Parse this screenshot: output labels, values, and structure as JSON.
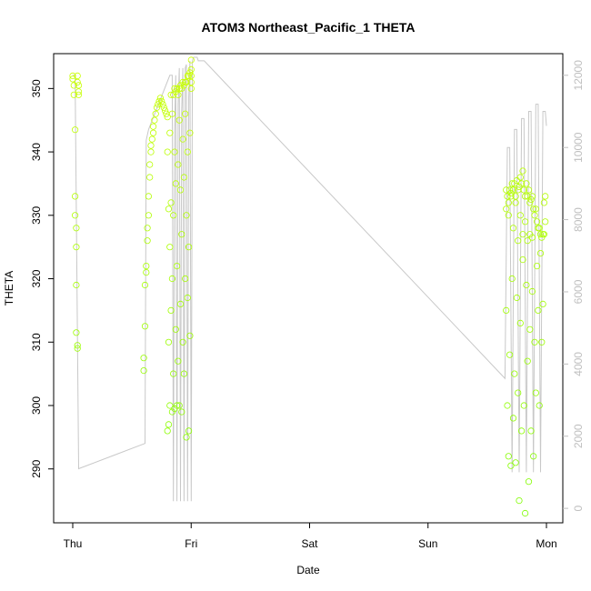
{
  "chart_data": {
    "type": "scatter",
    "title": "ATOM3 Northeast_Pacific_1 THETA",
    "xlabel": "Date",
    "ylabel": "THETA",
    "x_ticks": [
      "Thu",
      "Fri",
      "Sat",
      "Sun",
      "Mon"
    ],
    "x_range_days": [
      -0.1,
      4.1
    ],
    "y_ticks": [
      290,
      300,
      310,
      320,
      330,
      340,
      350
    ],
    "ylim": [
      281.5,
      355.5
    ],
    "y2_ticks": [
      0,
      2000,
      4000,
      6000,
      8000,
      10000,
      12000
    ],
    "y2lim": [
      -400,
      12600
    ],
    "grid": false,
    "legend": "none",
    "colors": {
      "line": "#c8c8c8",
      "right_axis": "#bfbfbf",
      "point_low_theta": "#7cfc00",
      "point_high_theta": "#ccff00"
    },
    "secondary_series_days": [
      0.0,
      0.02,
      0.05,
      0.61,
      0.62,
      0.64,
      0.82,
      0.84,
      0.85,
      0.86,
      0.87,
      0.88,
      0.89,
      0.9,
      0.91,
      0.92,
      0.93,
      0.94,
      0.95,
      0.96,
      0.97,
      0.98,
      0.99,
      1.0,
      1.01,
      1.02,
      1.03,
      1.04,
      1.05,
      1.06,
      1.07,
      1.08,
      1.09,
      1.1,
      1.11,
      3.65,
      3.67,
      3.69,
      3.71,
      3.73,
      3.75,
      3.77,
      3.79,
      3.81,
      3.83,
      3.85,
      3.87,
      3.89,
      3.91,
      3.93,
      3.95,
      3.97,
      3.99,
      4.0
    ],
    "secondary_series_values": [
      12000,
      12000,
      1100,
      1800,
      10200,
      10500,
      12000,
      12000,
      200,
      10500,
      12000,
      200,
      11200,
      12200,
      200,
      11000,
      12200,
      200,
      12200,
      12300,
      200,
      11400,
      12400,
      200,
      12400,
      12500,
      12500,
      12500,
      12500,
      12400,
      12400,
      12400,
      12400,
      12400,
      12400,
      3600,
      10000,
      10000,
      1000,
      10500,
      10500,
      1000,
      10800,
      10800,
      1000,
      11000,
      11000,
      1000,
      11200,
      11200,
      1000,
      11000,
      11000,
      10600
    ],
    "theta_series_days": [
      0.0,
      0.0,
      0.01,
      0.01,
      0.02,
      0.02,
      0.02,
      0.03,
      0.03,
      0.03,
      0.03,
      0.04,
      0.04,
      0.04,
      0.04,
      0.05,
      0.05,
      0.05,
      0.6,
      0.6,
      0.61,
      0.61,
      0.62,
      0.62,
      0.63,
      0.63,
      0.64,
      0.64,
      0.65,
      0.65,
      0.66,
      0.66,
      0.67,
      0.68,
      0.68,
      0.69,
      0.7,
      0.71,
      0.72,
      0.73,
      0.74,
      0.75,
      0.76,
      0.77,
      0.78,
      0.79,
      0.8,
      0.8,
      0.8,
      0.81,
      0.81,
      0.81,
      0.82,
      0.82,
      0.82,
      0.83,
      0.83,
      0.83,
      0.84,
      0.84,
      0.84,
      0.85,
      0.85,
      0.85,
      0.86,
      0.86,
      0.86,
      0.87,
      0.87,
      0.87,
      0.88,
      0.88,
      0.88,
      0.89,
      0.89,
      0.89,
      0.9,
      0.9,
      0.9,
      0.91,
      0.91,
      0.91,
      0.92,
      0.92,
      0.92,
      0.93,
      0.93,
      0.93,
      0.94,
      0.94,
      0.94,
      0.95,
      0.95,
      0.95,
      0.96,
      0.96,
      0.96,
      0.97,
      0.97,
      0.97,
      0.98,
      0.98,
      0.98,
      0.99,
      0.99,
      0.99,
      1.0,
      1.0,
      1.0,
      1.0,
      1.0,
      3.66,
      3.66,
      3.67,
      3.67,
      3.68,
      3.68,
      3.69,
      3.69,
      3.7,
      3.7,
      3.71,
      3.71,
      3.72,
      3.72,
      3.73,
      3.73,
      3.74,
      3.74,
      3.75,
      3.75,
      3.76,
      3.76,
      3.77,
      3.77,
      3.78,
      3.78,
      3.79,
      3.79,
      3.8,
      3.8,
      3.81,
      3.81,
      3.82,
      3.82,
      3.83,
      3.83,
      3.84,
      3.84,
      3.85,
      3.85,
      3.86,
      3.86,
      3.87,
      3.87,
      3.88,
      3.88,
      3.89,
      3.89,
      3.9,
      3.9,
      3.91,
      3.91,
      3.92,
      3.92,
      3.93,
      3.93,
      3.94,
      3.94,
      3.95,
      3.95,
      3.96,
      3.96,
      3.97,
      3.97,
      3.98,
      3.98,
      3.99,
      3.99,
      3.66,
      3.68,
      3.7,
      3.72,
      3.74,
      3.76,
      3.78,
      3.8,
      3.82,
      3.84,
      3.86,
      3.88,
      3.9,
      3.92,
      3.94,
      3.96
    ],
    "theta_series_values": [
      351.5,
      352.0,
      350.5,
      349.0,
      343.5,
      333.0,
      330.0,
      328.0,
      325.0,
      319.0,
      311.5,
      309.5,
      309.0,
      352.0,
      351.0,
      350.5,
      349.5,
      349.0,
      305.5,
      307.5,
      312.5,
      319.0,
      321.0,
      322.0,
      326.0,
      328.0,
      330.0,
      333.0,
      336.0,
      338.0,
      340.0,
      341.0,
      342.0,
      343.0,
      344.0,
      345.0,
      346.0,
      347.0,
      347.5,
      348.0,
      348.5,
      348.0,
      347.5,
      347.0,
      346.5,
      346.0,
      345.5,
      296.0,
      340.0,
      297.0,
      310.0,
      331.0,
      343.0,
      325.0,
      300.0,
      349.0,
      315.0,
      332.0,
      346.0,
      299.0,
      320.0,
      349.0,
      305.0,
      330.0,
      350.0,
      299.5,
      340.0,
      349.5,
      312.0,
      335.0,
      350.0,
      300.0,
      322.0,
      349.0,
      307.0,
      338.0,
      350.0,
      300.0,
      345.0,
      350.5,
      316.0,
      334.0,
      350.0,
      299.0,
      327.0,
      351.0,
      310.0,
      342.0,
      350.5,
      305.0,
      336.0,
      351.0,
      320.0,
      346.0,
      351.0,
      295.0,
      330.0,
      352.0,
      317.0,
      340.0,
      352.0,
      296.0,
      325.0,
      352.5,
      311.0,
      343.0,
      354.5,
      353.0,
      352.0,
      351.0,
      350.0,
      331.0,
      315.0,
      333.0,
      300.0,
      332.0,
      292.0,
      334.0,
      308.0,
      333.5,
      290.5,
      335.0,
      320.0,
      334.0,
      298.0,
      335.0,
      305.0,
      333.0,
      291.0,
      335.5,
      317.0,
      334.0,
      302.0,
      334.5,
      285.0,
      336.0,
      313.0,
      335.0,
      296.0,
      337.0,
      323.0,
      334.0,
      300.0,
      333.0,
      283.0,
      335.0,
      319.0,
      333.0,
      307.0,
      334.0,
      288.0,
      332.0,
      312.0,
      332.5,
      296.0,
      333.0,
      318.0,
      331.0,
      292.0,
      330.0,
      310.0,
      331.0,
      302.0,
      329.0,
      322.0,
      328.0,
      315.0,
      328.0,
      300.0,
      327.0,
      324.0,
      326.5,
      310.0,
      327.0,
      316.0,
      332.0,
      327.0,
      333.0,
      329.0,
      334.0,
      330.0,
      333.0,
      328.0,
      332.0,
      326.0,
      330.0,
      327.0,
      329.0,
      326.0,
      327.0,
      326.5
    ]
  }
}
